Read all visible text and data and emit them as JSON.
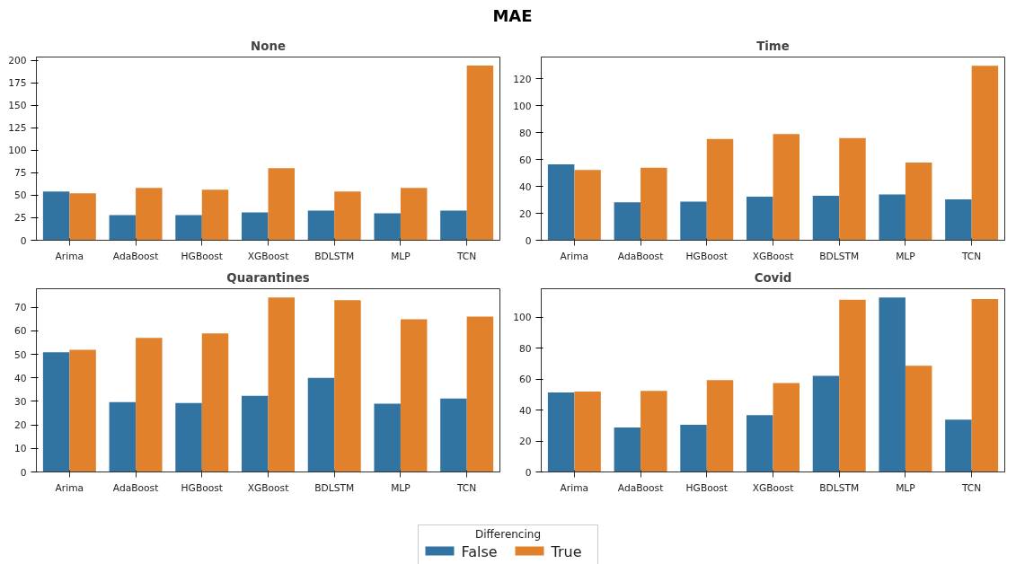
{
  "chart_data": [
    {
      "type": "bar",
      "title": "None",
      "annotations": [
        "MAE"
      ],
      "categories": [
        "Arima",
        "AdaBoost",
        "HGBoost",
        "XGBoost",
        "BDLSTM",
        "MLP",
        "TCN"
      ],
      "ylim": [
        0,
        203.5
      ],
      "yticks": [
        0,
        25,
        50,
        75,
        100,
        125,
        150,
        175,
        200
      ],
      "grid": false,
      "series": [
        {
          "color": "#3274a1",
          "values": [
            54,
            28,
            28,
            31,
            33,
            30,
            33
          ]
        },
        {
          "color": "#e1812c",
          "values": [
            52,
            58,
            56,
            80,
            54,
            58,
            194
          ]
        }
      ]
    },
    {
      "type": "bar",
      "title": "Time",
      "categories": [
        "Arima",
        "AdaBoost",
        "HGBoost",
        "XGBoost",
        "BDLSTM",
        "MLP",
        "TCN"
      ],
      "ylim": [
        0,
        136
      ],
      "yticks": [
        0,
        20,
        40,
        60,
        80,
        100,
        120
      ],
      "grid": false,
      "series": [
        {
          "color": "#3274a1",
          "values": [
            56.4,
            28.1,
            28.6,
            32.3,
            33,
            34,
            30.4
          ]
        },
        {
          "color": "#e1812c",
          "values": [
            52.2,
            53.9,
            75.2,
            78.9,
            75.9,
            57.6,
            129.5
          ]
        }
      ]
    },
    {
      "type": "bar",
      "title": "Quarantines",
      "categories": [
        "Arima",
        "AdaBoost",
        "HGBoost",
        "XGBoost",
        "BDLSTM",
        "MLP",
        "TCN"
      ],
      "ylim": [
        0,
        77.9
      ],
      "yticks": [
        0,
        10,
        20,
        30,
        40,
        50,
        60,
        70
      ],
      "grid": false,
      "series": [
        {
          "color": "#3274a1",
          "values": [
            50.9,
            29.7,
            29.3,
            32.4,
            40,
            29,
            31.2
          ]
        },
        {
          "color": "#e1812c",
          "values": [
            51.9,
            57,
            58.9,
            74.2,
            73,
            64.9,
            66.1
          ]
        }
      ]
    },
    {
      "type": "bar",
      "title": "Covid",
      "categories": [
        "Arima",
        "AdaBoost",
        "HGBoost",
        "XGBoost",
        "BDLSTM",
        "MLP",
        "TCN"
      ],
      "ylim": [
        0,
        118.3
      ],
      "yticks": [
        0,
        20,
        40,
        60,
        80,
        100
      ],
      "grid": false,
      "legend": "bottom",
      "legend_title": "Differencing",
      "series": [
        {
          "name": "False",
          "color": "#3274a1",
          "values": [
            51.3,
            28.7,
            30.5,
            36.7,
            62.1,
            112.6,
            33.8
          ]
        },
        {
          "name": "True",
          "color": "#e1812c",
          "values": [
            51.9,
            52.3,
            59.3,
            57.4,
            111.2,
            68.6,
            111.6
          ]
        }
      ]
    }
  ]
}
